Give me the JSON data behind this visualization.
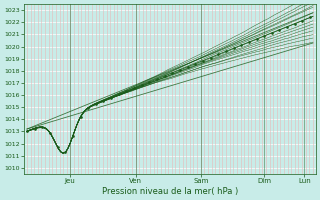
{
  "xlabel": "Pression niveau de la mer( hPa )",
  "bg_color": "#c8ece8",
  "grid_h_color": "#ffffff",
  "grid_v_color": "#e8b8b8",
  "line_color": "#1a5c1a",
  "ylim": [
    1009.5,
    1023.5
  ],
  "yticks": [
    1010,
    1011,
    1012,
    1013,
    1014,
    1015,
    1016,
    1017,
    1018,
    1019,
    1020,
    1021,
    1022,
    1023
  ],
  "day_labels": [
    "Jeu",
    "Ven",
    "Sam",
    "Dim",
    "Lun"
  ],
  "day_positions": [
    0.15,
    0.38,
    0.61,
    0.83,
    0.97
  ],
  "num_points": 300,
  "num_ensemble": 14
}
